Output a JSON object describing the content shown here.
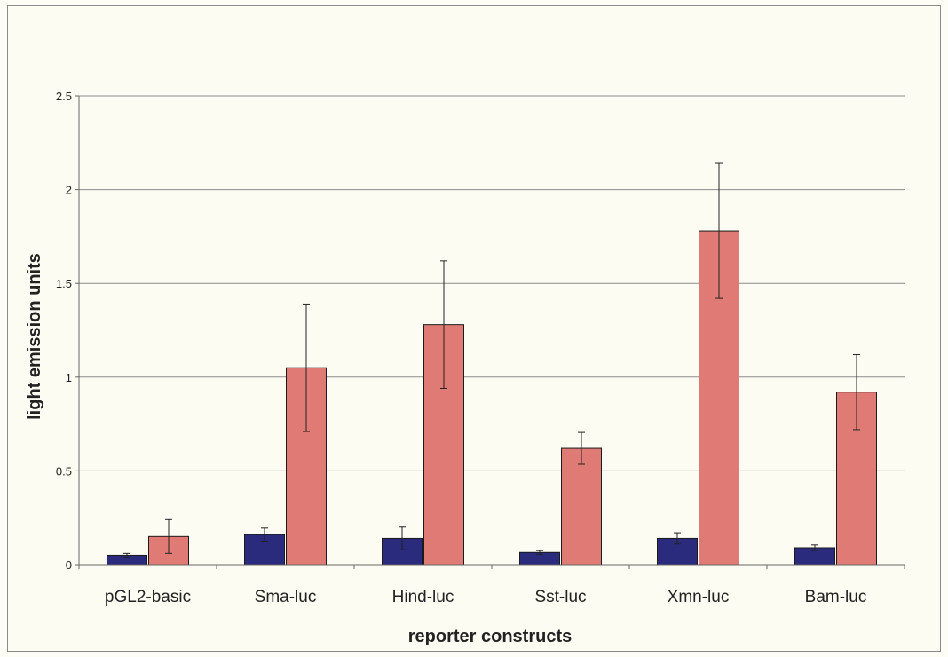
{
  "chart_data": {
    "type": "bar",
    "title": "",
    "xlabel": "reporter constructs",
    "ylabel": "light emission units",
    "ylim": [
      0,
      2.5
    ],
    "yticks": [
      0,
      0.5,
      1,
      1.5,
      2,
      2.5
    ],
    "ytick_labels": [
      "0",
      "0.5",
      "1",
      "1.5",
      "2",
      "2.5"
    ],
    "grid": true,
    "legend": "none",
    "categories": [
      "pGL2-basic",
      "Sma-luc",
      "Hind-luc",
      "Sst-luc",
      "Xmn-luc",
      "Bam-luc"
    ],
    "series": [
      {
        "color": "#2b2b7e",
        "values": [
          0.05,
          0.16,
          0.14,
          0.065,
          0.14,
          0.09
        ],
        "errors": [
          0.01,
          0.035,
          0.06,
          0.01,
          0.03,
          0.015
        ]
      },
      {
        "color": "#e07a74",
        "values": [
          0.15,
          1.05,
          1.28,
          0.62,
          1.78,
          0.92
        ],
        "errors": [
          0.09,
          0.34,
          0.34,
          0.085,
          0.36,
          0.2
        ]
      }
    ]
  }
}
